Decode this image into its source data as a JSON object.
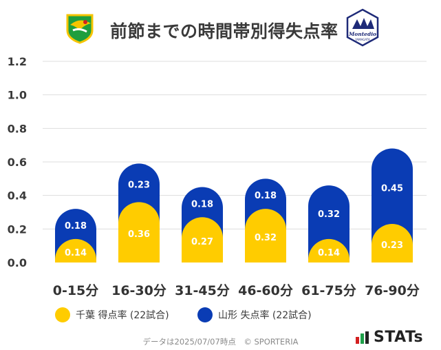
{
  "header": {
    "title": "前節までの時間帯別得失点率",
    "home_logo": "jef-united-chiba-crest-icon",
    "away_logo": "montedio-yamagata-crest-icon",
    "away_logo_text": "Montedio",
    "away_logo_subtext": "YAMAGATA"
  },
  "chart_data": {
    "type": "bar",
    "categories": [
      "0-15分",
      "16-30分",
      "31-45分",
      "46-60分",
      "61-75分",
      "76-90分"
    ],
    "series": [
      {
        "name": "千葉 得点率 (22試合)",
        "values": [
          0.14,
          0.36,
          0.27,
          0.32,
          0.14,
          0.23
        ],
        "color": "#FFCC00"
      },
      {
        "name": "山形 失点率 (22試合)",
        "values": [
          0.18,
          0.23,
          0.18,
          0.18,
          0.32,
          0.45
        ],
        "color": "#0A3CB4"
      }
    ],
    "data_labels": {
      "home": [
        "0.14",
        "0.36",
        "0.27",
        "0.32",
        "0.14",
        "0.23"
      ],
      "away": [
        "0.18",
        "0.23",
        "0.18",
        "0.18",
        "0.32",
        "0.45"
      ]
    },
    "ylim": [
      0,
      1.2
    ],
    "yticks": [
      "0.0",
      "0.2",
      "0.4",
      "0.6",
      "0.8",
      "1.0",
      "1.2"
    ],
    "stacked": true,
    "grid": true,
    "legend": "bottom"
  },
  "legend": {
    "home": "千葉 得点率 (22試合)",
    "away": "山形 失点率 (22試合)"
  },
  "footer": {
    "note": "データは2025/07/07時点　© SPORTERIA",
    "brand": "STATs"
  },
  "colors": {
    "home": "#FFCC00",
    "away": "#0A3CB4",
    "grid": "#DDDDDD",
    "text": "#3A3A3A"
  }
}
